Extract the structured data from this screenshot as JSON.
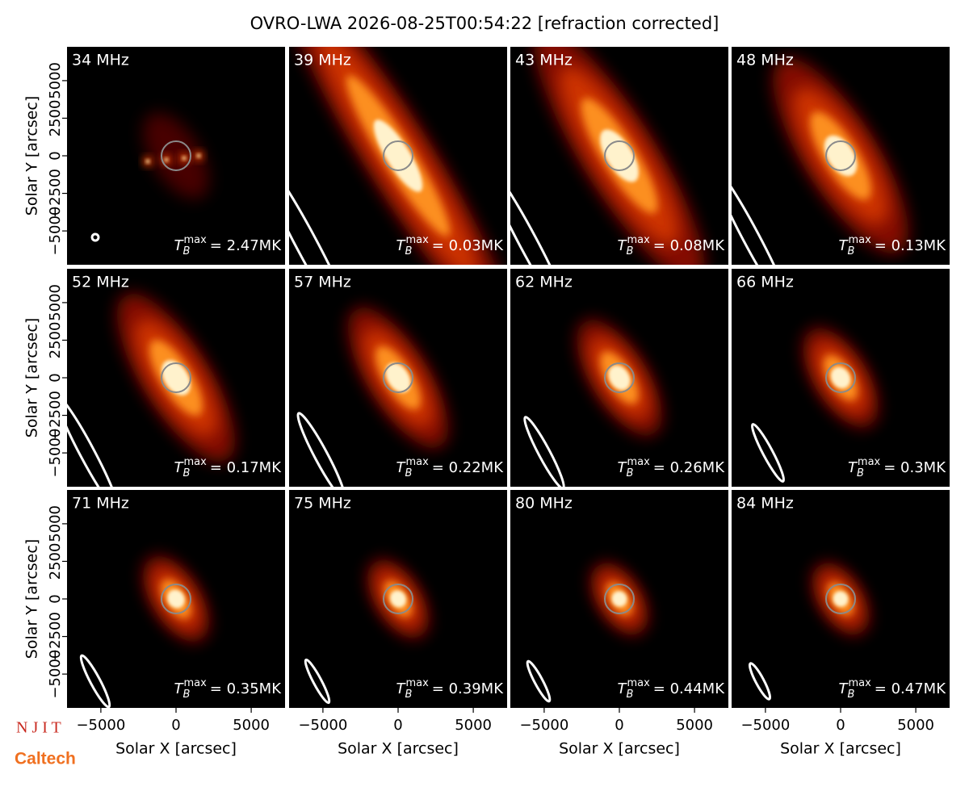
{
  "chart_data": {
    "type": "image-grid",
    "title": "OVRO-LWA 2026-08-25T00:54:22 [refraction corrected]",
    "xlabel": "Solar X [arcsec]",
    "ylabel": "Solar Y [arcsec]",
    "xlim": [
      -7250,
      7250
    ],
    "ylim": [
      -7250,
      7250
    ],
    "xticks": [
      {
        "value": -5000,
        "label": "−5000"
      },
      0,
      5000
    ],
    "yticks": [
      {
        "value": -5000,
        "label": "−5000"
      },
      {
        "value": -2500,
        "label": "−2500"
      },
      0,
      2500,
      5000
    ],
    "tb_symbol": "T",
    "tb_subscript": "B",
    "tb_superscript": "max",
    "panels": [
      {
        "label": "34 MHz",
        "tb_max": 2.47,
        "tb_max_label": "= 2.47MK"
      },
      {
        "label": "39 MHz",
        "tb_max": 0.03,
        "tb_max_label": "= 0.03MK"
      },
      {
        "label": "43 MHz",
        "tb_max": 0.08,
        "tb_max_label": "= 0.08MK"
      },
      {
        "label": "48 MHz",
        "tb_max": 0.13,
        "tb_max_label": "= 0.13MK"
      },
      {
        "label": "52 MHz",
        "tb_max": 0.17,
        "tb_max_label": "= 0.17MK"
      },
      {
        "label": "57 MHz",
        "tb_max": 0.22,
        "tb_max_label": "= 0.22MK"
      },
      {
        "label": "62 MHz",
        "tb_max": 0.26,
        "tb_max_label": "= 0.26MK"
      },
      {
        "label": "66 MHz",
        "tb_max": 0.3,
        "tb_max_label": "= 0.3MK"
      },
      {
        "label": "71 MHz",
        "tb_max": 0.35,
        "tb_max_label": "= 0.35MK"
      },
      {
        "label": "75 MHz",
        "tb_max": 0.39,
        "tb_max_label": "= 0.39MK"
      },
      {
        "label": "80 MHz",
        "tb_max": 0.44,
        "tb_max_label": "= 0.44MK"
      },
      {
        "label": "84 MHz",
        "tb_max": 0.47,
        "tb_max_label": "= 0.47MK"
      }
    ]
  },
  "logos": [
    "N J I T",
    "Caltech"
  ]
}
